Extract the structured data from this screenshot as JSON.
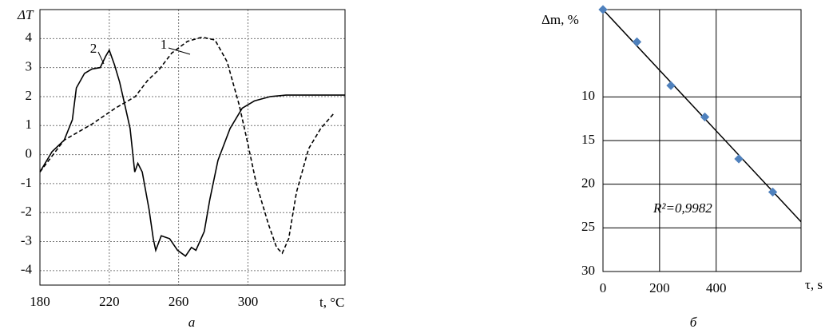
{
  "chart_data": [
    {
      "type": "line",
      "caption": "а",
      "y_label": "ΔT",
      "x_label": "t, °C",
      "xlim": [
        180,
        356
      ],
      "xticks": [
        180,
        220,
        260,
        300
      ],
      "ylim": [
        -4.5,
        5
      ],
      "yticks": [
        -4,
        -3,
        -2,
        -1,
        0,
        1,
        2,
        3,
        4
      ],
      "grid": true,
      "series": [
        {
          "name": "1",
          "color": "#000000",
          "dashed": true,
          "x": [
            180,
            194,
            210,
            223.5,
            235,
            242,
            249,
            256,
            265,
            273.5,
            281,
            288,
            295,
            300,
            304.8,
            311.8,
            316.5,
            319.8,
            323.5,
            328,
            335,
            342,
            350
          ],
          "values": [
            -0.6,
            0.5,
            1.05,
            1.6,
            2.0,
            2.55,
            2.95,
            3.5,
            3.9,
            4.05,
            3.95,
            3.2,
            1.7,
            0.35,
            -1.0,
            -2.4,
            -3.2,
            -3.4,
            -2.9,
            -1.3,
            0.2,
            0.9,
            1.45
          ]
        },
        {
          "name": "2",
          "color": "#000000",
          "dashed": false,
          "x": [
            180,
            187,
            194,
            198.7,
            201,
            205.7,
            210,
            214.8,
            218,
            220,
            223,
            226,
            229,
            232,
            234.7,
            236.5,
            239,
            243,
            245.4,
            246.8,
            250,
            254.8,
            259.4,
            264,
            267.4,
            270,
            274.8,
            278,
            282.7,
            289.7,
            296.7,
            303.7,
            313,
            322,
            341,
            356
          ],
          "values": [
            -0.6,
            0.1,
            0.5,
            1.2,
            2.3,
            2.8,
            2.95,
            3.0,
            3.4,
            3.6,
            3.1,
            2.5,
            1.7,
            0.9,
            -0.6,
            -0.3,
            -0.6,
            -1.9,
            -2.9,
            -3.3,
            -2.8,
            -2.9,
            -3.3,
            -3.5,
            -3.2,
            -3.3,
            -2.65,
            -1.55,
            -0.2,
            0.9,
            1.6,
            1.85,
            2.0,
            2.05,
            2.05,
            2.05
          ]
        }
      ]
    },
    {
      "type": "scatter",
      "caption": "б",
      "y_label": "Δm, %",
      "x_label": "τ, s",
      "xlim": [
        0,
        700
      ],
      "xticks": [
        0,
        200,
        400
      ],
      "ylim": [
        0,
        30
      ],
      "y_inverted": true,
      "yticks": [
        10,
        15,
        20,
        25,
        30
      ],
      "grid": true,
      "color": "#4f81bd",
      "x": [
        0,
        120,
        240,
        360,
        480,
        600
      ],
      "values": [
        0,
        3.7,
        8.7,
        12.3,
        17.1,
        20.9
      ],
      "trendline": {
        "x": [
          0,
          700
        ],
        "values": [
          0,
          24.3
        ]
      },
      "annotation": "R²=0,9982"
    }
  ]
}
